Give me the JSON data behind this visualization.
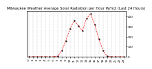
{
  "title": "Milwaukee Weather Average Solar Radiation per Hour W/m2 (Last 24 Hours)",
  "hours": [
    0,
    1,
    2,
    3,
    4,
    5,
    6,
    7,
    8,
    9,
    10,
    11,
    12,
    13,
    14,
    15,
    16,
    17,
    18,
    19,
    20,
    21,
    22,
    23
  ],
  "values": [
    0,
    0,
    0,
    0,
    0,
    0,
    0,
    5,
    60,
    160,
    280,
    360,
    310,
    260,
    380,
    430,
    320,
    180,
    60,
    5,
    0,
    0,
    0,
    0
  ],
  "line_color": "#ff0000",
  "marker_color": "#000000",
  "bg_color": "#ffffff",
  "grid_color": "#bbbbbb",
  "ylim": [
    0,
    460
  ],
  "ytick_positions": [
    0,
    100,
    200,
    300,
    400
  ],
  "ytick_labels": [
    "0",
    "100",
    "200",
    "300",
    "400"
  ],
  "title_fontsize": 3.8,
  "tick_fontsize": 3.0
}
